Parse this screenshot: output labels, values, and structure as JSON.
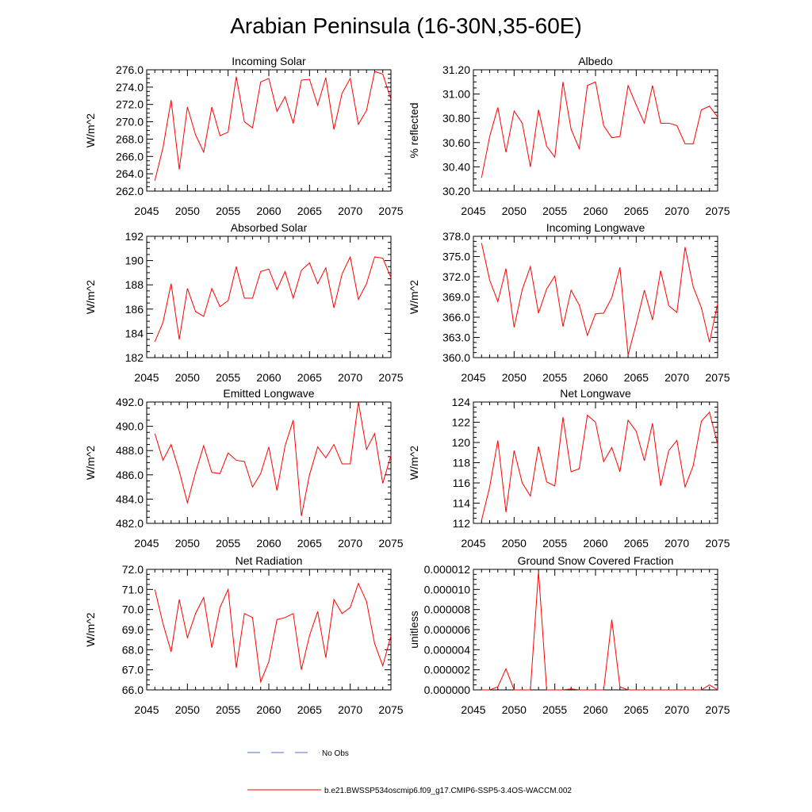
{
  "title": "Arabian Peninsula (16-30N,35-60E)",
  "colors": {
    "model": "#ff0000",
    "obs": "#4a6fd0",
    "axis": "#000000"
  },
  "legend": {
    "obs_label": "No Obs",
    "model_label": "b.e21.BWSSP534oscmip6.f09_g17.CMIP6-SSP5-3.4OS-WACCM.002"
  },
  "chart_data": [
    {
      "type": "line",
      "title": "Incoming Solar",
      "ylabel": "W/m^2",
      "xlim": [
        2045,
        2075
      ],
      "ylim": [
        262,
        276
      ],
      "xticks": [
        2045,
        2050,
        2055,
        2060,
        2065,
        2070,
        2075
      ],
      "xtick_labels": [
        "2045",
        "2050",
        "2055",
        "2060",
        "2065",
        "2070",
        "2075"
      ],
      "yticks": [
        262,
        264,
        266,
        268,
        270,
        272,
        274,
        276
      ],
      "ytick_labels": [
        "262.0",
        "264.0",
        "266.0",
        "268.0",
        "270.0",
        "272.0",
        "274.0",
        "276.0"
      ],
      "x": [
        2046,
        2047,
        2048,
        2049,
        2050,
        2051,
        2052,
        2053,
        2054,
        2055,
        2056,
        2057,
        2058,
        2059,
        2060,
        2061,
        2062,
        2063,
        2064,
        2065,
        2066,
        2067,
        2068,
        2069,
        2070,
        2071,
        2072,
        2073,
        2074,
        2075
      ],
      "values": [
        263.2,
        267.0,
        272.5,
        264.5,
        271.7,
        268.5,
        266.5,
        271.7,
        268.4,
        268.8,
        275.2,
        270.0,
        269.3,
        274.6,
        275.0,
        271.2,
        272.9,
        269.8,
        274.8,
        274.9,
        271.9,
        275.1,
        269.1,
        273.3,
        275.0,
        269.7,
        271.3,
        275.8,
        275.5,
        272.6
      ]
    },
    {
      "type": "line",
      "title": "Albedo",
      "ylabel": "% reflected",
      "xlim": [
        2045,
        2075
      ],
      "ylim": [
        30.2,
        31.2
      ],
      "xticks": [
        2045,
        2050,
        2055,
        2060,
        2065,
        2070,
        2075
      ],
      "xtick_labels": [
        "2045",
        "2050",
        "2055",
        "2060",
        "2065",
        "2070",
        "2075"
      ],
      "yticks": [
        30.2,
        30.4,
        30.6,
        30.8,
        31.0,
        31.2
      ],
      "ytick_labels": [
        "30.20",
        "30.40",
        "30.60",
        "30.80",
        "31.00",
        "31.20"
      ],
      "x": [
        2046,
        2047,
        2048,
        2049,
        2050,
        2051,
        2052,
        2053,
        2054,
        2055,
        2056,
        2057,
        2058,
        2059,
        2060,
        2061,
        2062,
        2063,
        2064,
        2065,
        2066,
        2067,
        2068,
        2069,
        2070,
        2071,
        2072,
        2073,
        2074,
        2075
      ],
      "values": [
        30.31,
        30.65,
        30.89,
        30.52,
        30.86,
        30.76,
        30.4,
        30.87,
        30.57,
        30.48,
        31.1,
        30.71,
        30.55,
        31.07,
        31.1,
        30.74,
        30.64,
        30.65,
        31.07,
        30.91,
        30.76,
        31.07,
        30.76,
        30.76,
        30.74,
        30.59,
        30.59,
        30.87,
        30.9,
        30.81
      ]
    },
    {
      "type": "line",
      "title": "Absorbed Solar",
      "ylabel": "W/m^2",
      "xlim": [
        2045,
        2075
      ],
      "ylim": [
        182,
        192
      ],
      "xticks": [
        2045,
        2050,
        2055,
        2060,
        2065,
        2070,
        2075
      ],
      "xtick_labels": [
        "2045",
        "2050",
        "2055",
        "2060",
        "2065",
        "2070",
        "2075"
      ],
      "yticks": [
        182,
        184,
        186,
        188,
        190,
        192
      ],
      "ytick_labels": [
        "182",
        "184",
        "186",
        "188",
        "190",
        "192"
      ],
      "x": [
        2046,
        2047,
        2048,
        2049,
        2050,
        2051,
        2052,
        2053,
        2054,
        2055,
        2056,
        2057,
        2058,
        2059,
        2060,
        2061,
        2062,
        2063,
        2064,
        2065,
        2066,
        2067,
        2068,
        2069,
        2070,
        2071,
        2072,
        2073,
        2074,
        2075
      ],
      "values": [
        183.3,
        184.9,
        188.1,
        183.5,
        187.7,
        185.8,
        185.4,
        187.7,
        186.2,
        186.7,
        189.5,
        186.9,
        186.9,
        189.1,
        189.3,
        187.6,
        189.1,
        186.9,
        189.2,
        189.8,
        188.1,
        189.4,
        186.1,
        188.9,
        190.3,
        186.8,
        188.1,
        190.3,
        190.2,
        188.6
      ]
    },
    {
      "type": "line",
      "title": "Incoming Longwave",
      "ylabel": "W/m^2",
      "xlim": [
        2045,
        2075
      ],
      "ylim": [
        360,
        378
      ],
      "xticks": [
        2045,
        2050,
        2055,
        2060,
        2065,
        2070,
        2075
      ],
      "xtick_labels": [
        "2045",
        "2050",
        "2055",
        "2060",
        "2065",
        "2070",
        "2075"
      ],
      "yticks": [
        360,
        363,
        366,
        369,
        372,
        375,
        378
      ],
      "ytick_labels": [
        "360.0",
        "363.0",
        "366.0",
        "369.0",
        "372.0",
        "375.0",
        "378.0"
      ],
      "x": [
        2046,
        2047,
        2048,
        2049,
        2050,
        2051,
        2052,
        2053,
        2054,
        2055,
        2056,
        2057,
        2058,
        2059,
        2060,
        2061,
        2062,
        2063,
        2064,
        2065,
        2066,
        2067,
        2068,
        2069,
        2070,
        2071,
        2072,
        2073,
        2074,
        2075
      ],
      "values": [
        377.0,
        371.5,
        368.3,
        373.2,
        364.5,
        370.1,
        373.5,
        366.6,
        370.2,
        372.1,
        364.6,
        370.0,
        367.8,
        363.3,
        366.5,
        366.6,
        368.9,
        373.4,
        360.4,
        365.0,
        370.0,
        365.6,
        372.9,
        367.7,
        366.7,
        376.4,
        370.5,
        367.4,
        362.3,
        368.0
      ]
    },
    {
      "type": "line",
      "title": "Emitted Longwave",
      "ylabel": "W/m^2",
      "xlim": [
        2045,
        2075
      ],
      "ylim": [
        482,
        492
      ],
      "xticks": [
        2045,
        2050,
        2055,
        2060,
        2065,
        2070,
        2075
      ],
      "xtick_labels": [
        "2045",
        "2050",
        "2055",
        "2060",
        "2065",
        "2070",
        "2075"
      ],
      "yticks": [
        482,
        484,
        486,
        488,
        490,
        492
      ],
      "ytick_labels": [
        "482.0",
        "484.0",
        "486.0",
        "488.0",
        "490.0",
        "492.0"
      ],
      "x": [
        2046,
        2047,
        2048,
        2049,
        2050,
        2051,
        2052,
        2053,
        2054,
        2055,
        2056,
        2057,
        2058,
        2059,
        2060,
        2061,
        2062,
        2063,
        2064,
        2065,
        2066,
        2067,
        2068,
        2069,
        2070,
        2071,
        2072,
        2073,
        2074,
        2075
      ],
      "values": [
        489.4,
        487.2,
        488.5,
        486.3,
        483.7,
        486.2,
        488.4,
        486.2,
        486.1,
        487.8,
        487.2,
        487.1,
        485.0,
        486.1,
        488.3,
        484.7,
        488.4,
        490.5,
        482.6,
        486.0,
        488.3,
        487.4,
        488.5,
        486.9,
        486.9,
        492.0,
        488.1,
        489.4,
        485.3,
        487.6
      ]
    },
    {
      "type": "line",
      "title": "Net Longwave",
      "ylabel": "W/m^2",
      "xlim": [
        2045,
        2075
      ],
      "ylim": [
        112,
        124
      ],
      "xticks": [
        2045,
        2050,
        2055,
        2060,
        2065,
        2070,
        2075
      ],
      "xtick_labels": [
        "2045",
        "2050",
        "2055",
        "2060",
        "2065",
        "2070",
        "2075"
      ],
      "yticks": [
        112,
        114,
        116,
        118,
        120,
        122,
        124
      ],
      "ytick_labels": [
        "112",
        "114",
        "116",
        "118",
        "120",
        "122",
        "124"
      ],
      "x": [
        2046,
        2047,
        2048,
        2049,
        2050,
        2051,
        2052,
        2053,
        2054,
        2055,
        2056,
        2057,
        2058,
        2059,
        2060,
        2061,
        2062,
        2063,
        2064,
        2065,
        2066,
        2067,
        2068,
        2069,
        2070,
        2071,
        2072,
        2073,
        2074,
        2075
      ],
      "values": [
        112.3,
        115.6,
        120.2,
        113.1,
        119.2,
        116.0,
        114.7,
        119.6,
        116.1,
        115.7,
        122.5,
        117.1,
        117.4,
        122.7,
        122.0,
        118.1,
        119.5,
        117.1,
        122.2,
        121.1,
        118.2,
        121.9,
        115.7,
        119.2,
        120.2,
        115.6,
        117.7,
        122.1,
        123.0,
        119.8
      ]
    },
    {
      "type": "line",
      "title": "Net Radiation",
      "ylabel": "W/m^2",
      "xlim": [
        2045,
        2075
      ],
      "ylim": [
        66,
        72
      ],
      "xticks": [
        2045,
        2050,
        2055,
        2060,
        2065,
        2070,
        2075
      ],
      "xtick_labels": [
        "2045",
        "2050",
        "2055",
        "2060",
        "2065",
        "2070",
        "2075"
      ],
      "yticks": [
        66,
        67,
        68,
        69,
        70,
        71,
        72
      ],
      "ytick_labels": [
        "66.0",
        "67.0",
        "68.0",
        "69.0",
        "70.0",
        "71.0",
        "72.0"
      ],
      "x": [
        2046,
        2047,
        2048,
        2049,
        2050,
        2051,
        2052,
        2053,
        2054,
        2055,
        2056,
        2057,
        2058,
        2059,
        2060,
        2061,
        2062,
        2063,
        2064,
        2065,
        2066,
        2067,
        2068,
        2069,
        2070,
        2071,
        2072,
        2073,
        2074,
        2075
      ],
      "values": [
        71.0,
        69.3,
        67.9,
        70.5,
        68.6,
        69.8,
        70.6,
        68.1,
        70.1,
        71.0,
        67.1,
        69.8,
        69.6,
        66.4,
        67.4,
        69.5,
        69.6,
        69.8,
        67.0,
        68.7,
        69.9,
        67.6,
        70.5,
        69.8,
        70.1,
        71.3,
        70.4,
        68.3,
        67.2,
        68.7
      ]
    },
    {
      "type": "line",
      "title": "Ground Snow Covered Fraction",
      "ylabel": "unitless",
      "xlim": [
        2045,
        2075
      ],
      "ylim": [
        0,
        1.2e-05
      ],
      "xticks": [
        2045,
        2050,
        2055,
        2060,
        2065,
        2070,
        2075
      ],
      "xtick_labels": [
        "2045",
        "2050",
        "2055",
        "2060",
        "2065",
        "2070",
        "2075"
      ],
      "yticks": [
        0,
        2e-06,
        4e-06,
        6e-06,
        8e-06,
        1e-05,
        1.2e-05
      ],
      "ytick_labels": [
        "0.000000",
        "0.000002",
        "0.000004",
        "0.000006",
        "0.000008",
        "0.000010",
        "0.000012"
      ],
      "x": [
        2046,
        2047,
        2048,
        2049,
        2050,
        2051,
        2052,
        2053,
        2054,
        2055,
        2056,
        2057,
        2058,
        2059,
        2060,
        2061,
        2062,
        2063,
        2064,
        2065,
        2066,
        2067,
        2068,
        2069,
        2070,
        2071,
        2072,
        2073,
        2074,
        2075
      ],
      "values": [
        0,
        0,
        3e-07,
        2.1e-06,
        0,
        0,
        0,
        1.18e-05,
        0,
        0,
        0,
        1e-07,
        0,
        0,
        0,
        0,
        7e-06,
        3e-07,
        0,
        0,
        0,
        0,
        0,
        0,
        0,
        0,
        0,
        0,
        5e-07,
        0
      ]
    }
  ]
}
